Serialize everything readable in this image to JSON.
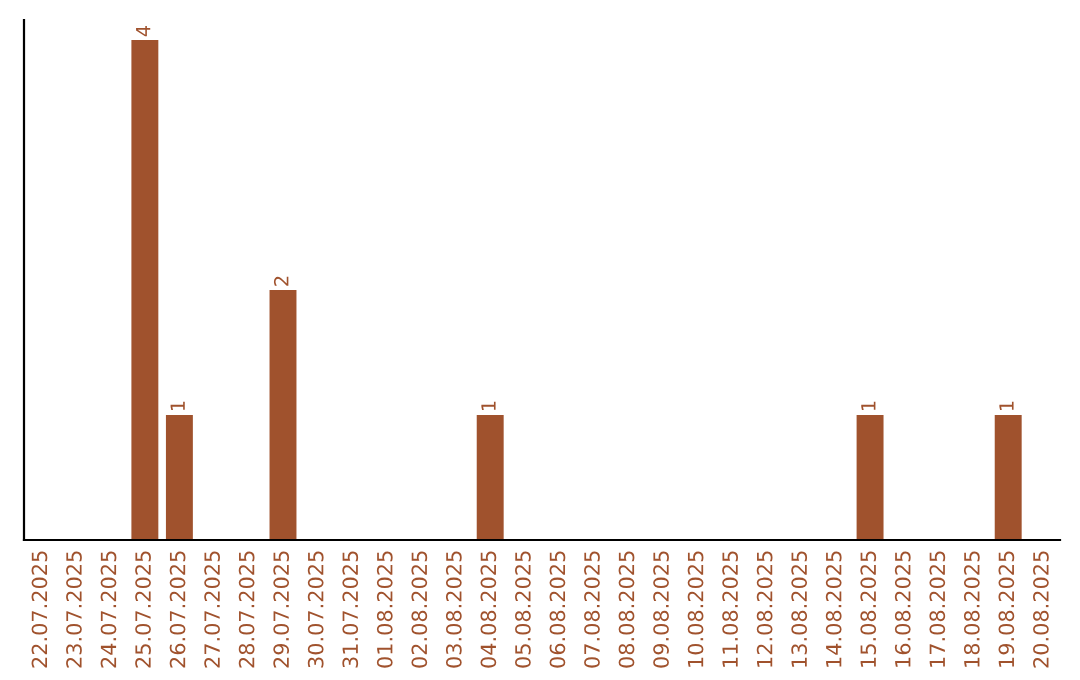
{
  "chart_data": {
    "type": "bar",
    "categories": [
      "22.07.2025",
      "23.07.2025",
      "24.07.2025",
      "25.07.2025",
      "26.07.2025",
      "27.07.2025",
      "28.07.2025",
      "29.07.2025",
      "30.07.2025",
      "31.07.2025",
      "01.08.2025",
      "02.08.2025",
      "03.08.2025",
      "04.08.2025",
      "05.08.2025",
      "06.08.2025",
      "07.08.2025",
      "08.08.2025",
      "09.08.2025",
      "10.08.2025",
      "11.08.2025",
      "12.08.2025",
      "13.08.2025",
      "14.08.2025",
      "15.08.2025",
      "16.08.2025",
      "17.08.2025",
      "18.08.2025",
      "19.08.2025",
      "20.08.2025"
    ],
    "values": [
      0,
      0,
      0,
      4,
      1,
      0,
      0,
      2,
      0,
      0,
      0,
      0,
      0,
      1,
      0,
      0,
      0,
      0,
      0,
      0,
      0,
      0,
      0,
      0,
      1,
      0,
      0,
      0,
      1,
      0
    ],
    "value_labels": [
      null,
      null,
      null,
      "4",
      "1",
      null,
      null,
      "2",
      null,
      null,
      null,
      null,
      null,
      "1",
      null,
      null,
      null,
      null,
      null,
      null,
      null,
      null,
      null,
      null,
      "1",
      null,
      null,
      null,
      "1",
      null
    ],
    "color": "#a0522d",
    "ylim": [
      0,
      4.16
    ],
    "tick_labels": "x",
    "grid": false,
    "legend": false
  }
}
